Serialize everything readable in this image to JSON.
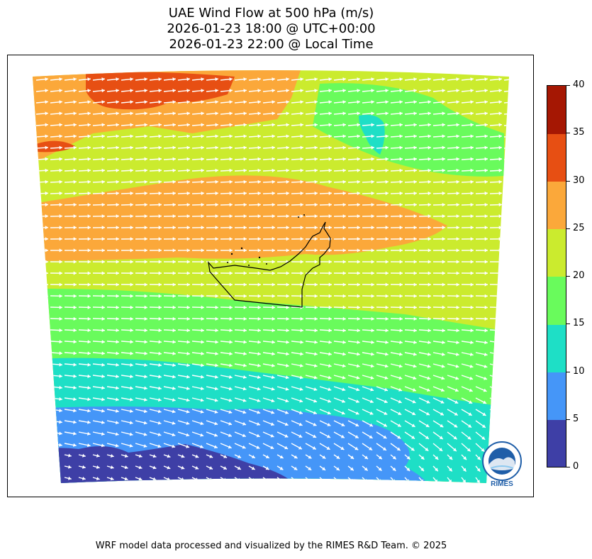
{
  "title": {
    "line1": "UAE Wind Flow at 500 hPa (m/s)",
    "line2": "2026-01-23 18:00 @ UTC+00:00",
    "line3": "2026-01-23 22:00 @ Local Time"
  },
  "colorbar": {
    "ticks": [
      "0",
      "5",
      "10",
      "15",
      "20",
      "25",
      "30",
      "35",
      "40"
    ],
    "bins": [
      {
        "range": "0-5",
        "color": "#3e3fa6"
      },
      {
        "range": "5-10",
        "color": "#4596f8"
      },
      {
        "range": "10-15",
        "color": "#1edfc6"
      },
      {
        "range": "15-20",
        "color": "#69fb5c"
      },
      {
        "range": "20-25",
        "color": "#cbeb2e"
      },
      {
        "range": "25-30",
        "color": "#fba83a"
      },
      {
        "range": "30-35",
        "color": "#e74f13"
      },
      {
        "range": "35-40",
        "color": "#a51703"
      }
    ]
  },
  "map": {
    "region": "UAE",
    "variable": "wind speed at 500 hPa",
    "vectors": "white wind arrows"
  },
  "logo": {
    "text": "RIMES",
    "ring_text": "Regional Integrated Multi-Hazard Early Warning System"
  },
  "footer": "WRF model data processed and visualized by the RIMES R&D Team. © 2025"
}
